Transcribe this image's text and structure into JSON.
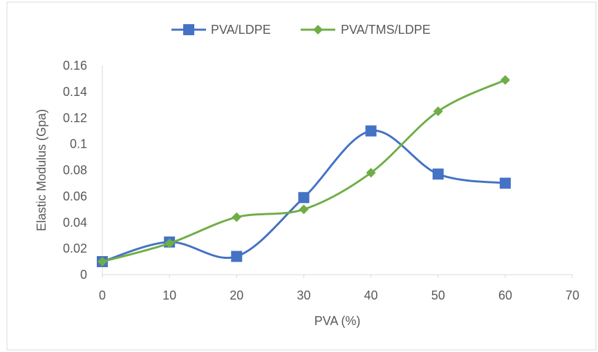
{
  "chart_data": {
    "type": "line",
    "title": "",
    "xlabel": "PVA (%)",
    "ylabel": "Elastic Modulus (Gpa)",
    "xlim": [
      0,
      70
    ],
    "ylim": [
      0,
      0.16
    ],
    "x_ticks": [
      "0",
      "10",
      "20",
      "30",
      "40",
      "50",
      "60",
      "70"
    ],
    "y_ticks": [
      "0",
      "0.02",
      "0.04",
      "0.06",
      "0.08",
      "0.1",
      "0.12",
      "0.14",
      "0.16"
    ],
    "grid": false,
    "legend_position": "top",
    "smooth": true,
    "x": [
      0,
      10,
      20,
      30,
      40,
      50,
      60
    ],
    "series": [
      {
        "name": "PVA/LDPE",
        "color": "#4472C4",
        "marker": "square",
        "values": [
          0.01,
          0.025,
          0.014,
          0.059,
          0.11,
          0.077,
          0.07
        ]
      },
      {
        "name": "PVA/TMS/LDPE",
        "color": "#70AD47",
        "marker": "diamond",
        "values": [
          0.01,
          0.024,
          0.044,
          0.05,
          0.078,
          0.125,
          0.149
        ]
      }
    ]
  }
}
